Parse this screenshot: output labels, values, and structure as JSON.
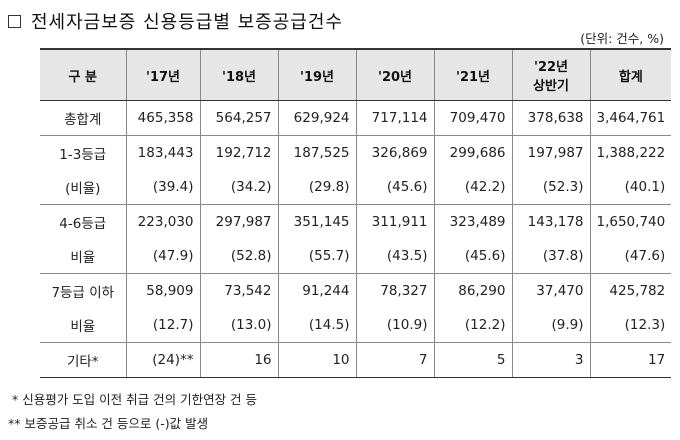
{
  "title": "전세자금보증 신용등급별 보증공급건수",
  "unit": "(단위: 건수, %)",
  "columns": [
    "구 분",
    "'17년",
    "'18년",
    "'19년",
    "'20년",
    "'21년",
    "'22년\n상반기",
    "합계"
  ],
  "rows": [
    {
      "label": "총합계",
      "values": [
        "465,358",
        "564,257",
        "629,924",
        "717,114",
        "709,470",
        "378,638",
        "3,464,761"
      ]
    },
    {
      "label": "1-3등급",
      "values": [
        "183,443",
        "192,712",
        "187,525",
        "326,869",
        "299,686",
        "197,987",
        "1,388,222"
      ]
    },
    {
      "label": "(비율)",
      "values": [
        "(39.4)",
        "(34.2)",
        "(29.8)",
        "(45.6)",
        "(42.2)",
        "(52.3)",
        "(40.1)"
      ]
    },
    {
      "label": "4-6등급",
      "values": [
        "223,030",
        "297,987",
        "351,145",
        "311,911",
        "323,489",
        "143,178",
        "1,650,740"
      ]
    },
    {
      "label": "비율",
      "values": [
        "(47.9)",
        "(52.8)",
        "(55.7)",
        "(43.5)",
        "(45.6)",
        "(37.8)",
        "(47.6)"
      ]
    },
    {
      "label": "7등급 이하",
      "values": [
        "58,909",
        "73,542",
        "91,244",
        "78,327",
        "86,290",
        "37,470",
        "425,782"
      ]
    },
    {
      "label": "비율",
      "values": [
        "(12.7)",
        "(13.0)",
        "(14.5)",
        "(10.9)",
        "(12.2)",
        "(9.9)",
        "(12.3)"
      ]
    },
    {
      "label": "기타*",
      "values": [
        "(24)**",
        "16",
        "10",
        "7",
        "5",
        "3",
        "17"
      ]
    }
  ],
  "footnotes": [
    " * 신용평가 도입 이전 취급 건의 기한연장 건 등",
    "** 보증공급 취소 건 등으로 (-)값 발생"
  ]
}
